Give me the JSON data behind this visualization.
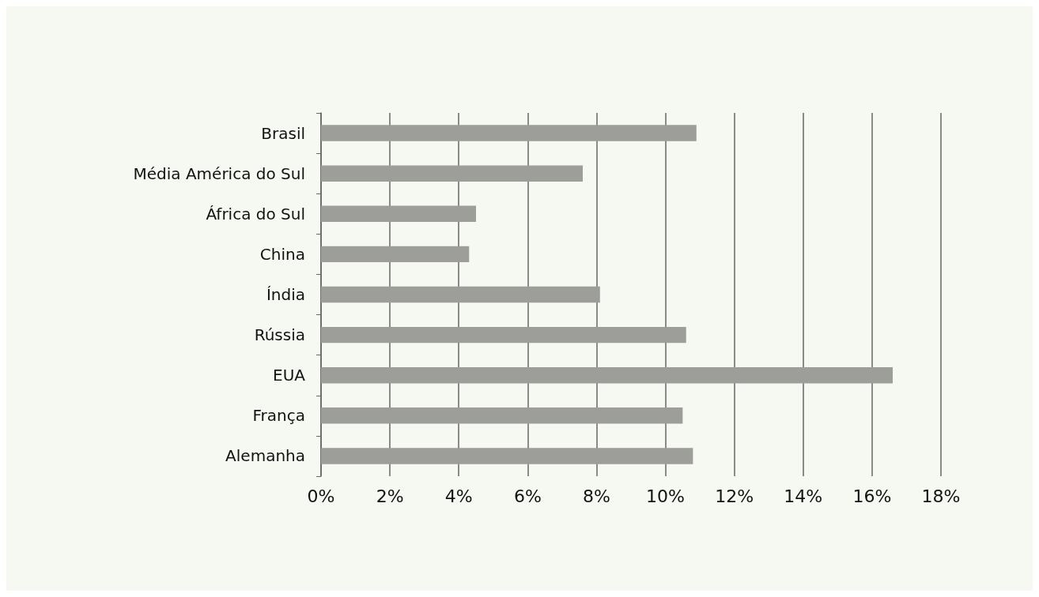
{
  "chart_data": {
    "type": "bar",
    "orientation": "horizontal",
    "categories": [
      "Brasil",
      "Média América do Sul",
      "África do Sul",
      "China",
      "Índia",
      "Rússia",
      "EUA",
      "França",
      "Alemanha"
    ],
    "values": [
      10.9,
      7.6,
      4.5,
      4.3,
      8.1,
      10.6,
      16.6,
      10.5,
      10.8
    ],
    "color": "#9d9d9a",
    "xlim": [
      0,
      18
    ],
    "xticks": [
      {
        "value": 0,
        "label": "0%"
      },
      {
        "value": 2,
        "label": "2%"
      },
      {
        "value": 4,
        "label": "4%"
      },
      {
        "value": 6,
        "label": "6%"
      },
      {
        "value": 8,
        "label": "8%"
      },
      {
        "value": 10,
        "label": "10%"
      },
      {
        "value": 12,
        "label": "12%"
      },
      {
        "value": 14,
        "label": "14%"
      },
      {
        "value": 16,
        "label": "16%"
      },
      {
        "value": 18,
        "label": "18%"
      }
    ],
    "grid": "x"
  }
}
